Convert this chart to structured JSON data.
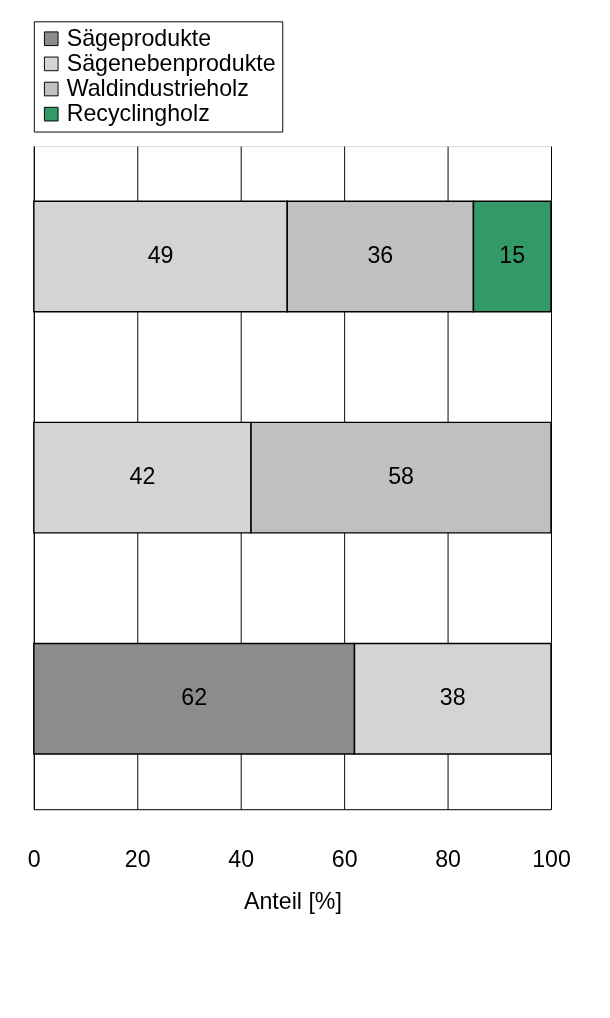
{
  "chart_data": {
    "type": "bar",
    "orientation": "horizontal",
    "stacked": true,
    "xlabel": "Anteil [%]",
    "categories": [
      null,
      null,
      null
    ],
    "series": [
      {
        "name": "Sägeprodukte",
        "color": "#8c8c8c",
        "values": [
          null,
          null,
          62
        ]
      },
      {
        "name": "Sägenebenprodukte",
        "color": "#d4d4d4",
        "values": [
          49,
          42,
          38
        ]
      },
      {
        "name": "Waldindustrieholz",
        "color": "#c0c0c0",
        "values": [
          36,
          58,
          null
        ]
      },
      {
        "name": "Recyclingholz",
        "color": "#339966",
        "values": [
          15,
          null,
          null
        ]
      }
    ],
    "xlim": [
      0,
      100
    ],
    "xticks": [
      0,
      20,
      40,
      60,
      80,
      100
    ],
    "grid": "x",
    "legend": "top",
    "tick_labels": "x",
    "data_labels": true
  }
}
